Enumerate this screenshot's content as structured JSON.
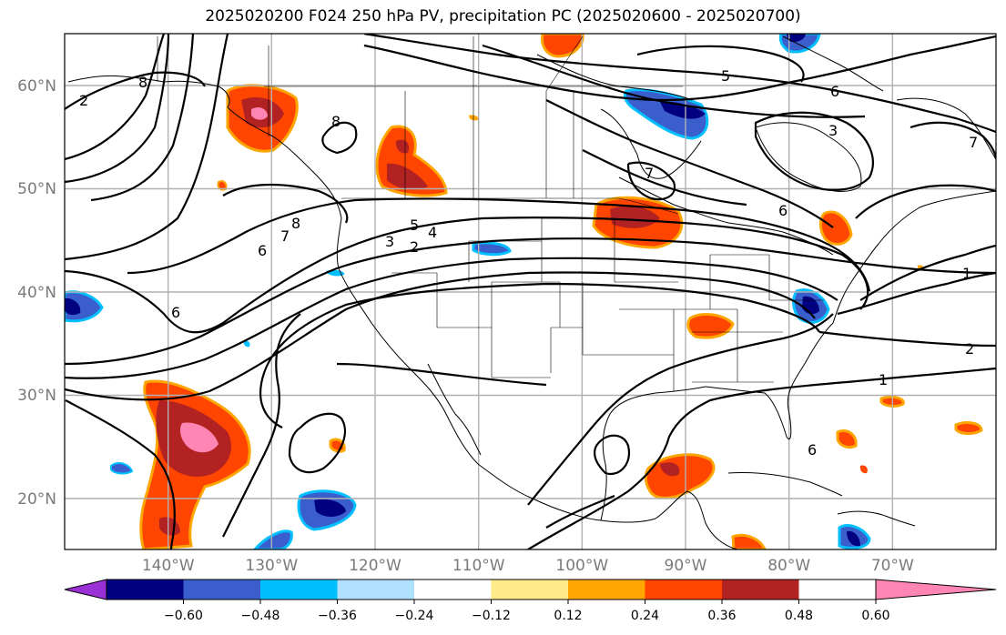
{
  "title": "2025020200 F024 250 hPa PV, precipitation PC (2025020600 - 2025020700)",
  "map": {
    "projection": "plate carree",
    "lon_range": [
      -150,
      -60
    ],
    "lat_range": [
      15,
      65
    ],
    "lat_ticks": [
      "20°N",
      "30°N",
      "40°N",
      "50°N",
      "60°N"
    ],
    "lon_ticks": [
      "140°W",
      "130°W",
      "120°W",
      "110°W",
      "100°W",
      "90°W",
      "80°W",
      "70°W"
    ],
    "contour_labels": [
      "1",
      "1",
      "2",
      "2",
      "2",
      "3",
      "3",
      "4",
      "5",
      "5",
      "6",
      "6",
      "6",
      "6",
      "6",
      "7",
      "7",
      "7",
      "8",
      "8",
      "8"
    ]
  },
  "colorbar": {
    "labels": [
      "−0.60",
      "−0.48",
      "−0.36",
      "−0.24",
      "−0.12",
      "0.12",
      "0.24",
      "0.36",
      "0.48",
      "0.60"
    ],
    "colors": [
      "#9b30d6",
      "#000080",
      "#3a5fcd",
      "#00bfff",
      "#b0e0ff",
      "#ffffff",
      "#ffeb8a",
      "#ffa500",
      "#ff4500",
      "#b22222",
      "#ff85b4"
    ]
  }
}
